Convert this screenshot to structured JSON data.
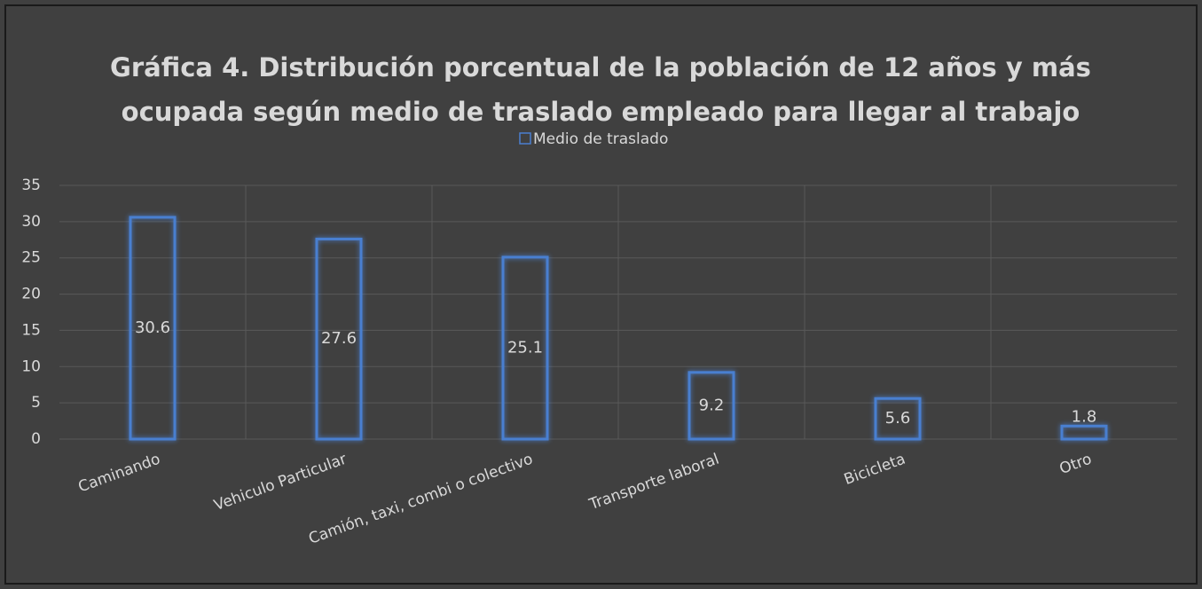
{
  "chart_data": {
    "type": "bar",
    "title": [
      "Gráfica 4. Distribución porcentual de la población de 12 años y más",
      "ocupada según medio de traslado empleado para llegar al trabajo"
    ],
    "categories": [
      "Caminando",
      "Vehiculo Particular",
      "Camión, taxi, combi o colectivo",
      "Transporte laboral",
      "Bicicleta",
      "Otro"
    ],
    "series": [
      {
        "name": "Medio de traslado",
        "color": "#4a7fd0",
        "values": [
          30.6,
          27.6,
          25.1,
          9.2,
          5.6,
          1.8
        ]
      }
    ],
    "ylim": [
      0,
      35
    ],
    "yticks": [
      0,
      5,
      10,
      15,
      20,
      25,
      30,
      35
    ],
    "grid": true,
    "legend": "top"
  }
}
